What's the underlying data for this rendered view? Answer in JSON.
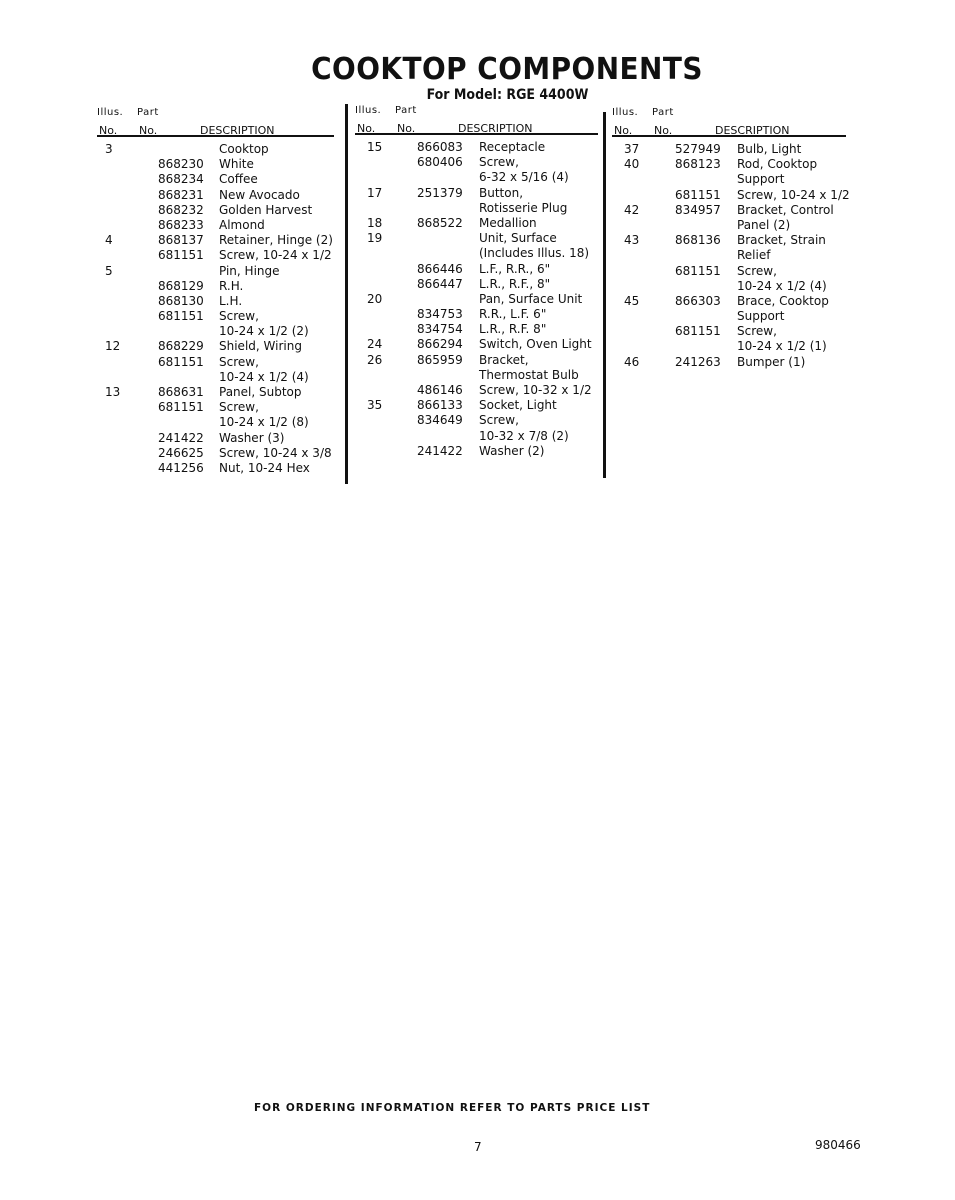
{
  "title": "COOKTOP COMPONENTS",
  "subtitle": "For Model: RGE 4400W",
  "header": {
    "illus": "Illus.",
    "part": "Part",
    "no_illus": "No.",
    "no_part": "No.",
    "description": "DESCRIPTION"
  },
  "columns": [
    {
      "rows": [
        {
          "illus": "3",
          "part": "",
          "desc": "Cooktop"
        },
        {
          "illus": "",
          "part": "868230",
          "desc": "White"
        },
        {
          "illus": "",
          "part": "868234",
          "desc": "Coffee"
        },
        {
          "illus": "",
          "part": "868231",
          "desc": "New Avocado"
        },
        {
          "illus": "",
          "part": "868232",
          "desc": "Golden Harvest"
        },
        {
          "illus": "",
          "part": "868233",
          "desc": "Almond"
        },
        {
          "illus": "4",
          "part": "868137",
          "desc": "Retainer, Hinge (2)"
        },
        {
          "illus": "",
          "part": "681151",
          "desc": "Screw, 10-24 x 1/2"
        },
        {
          "illus": "5",
          "part": "",
          "desc": "Pin, Hinge"
        },
        {
          "illus": "",
          "part": "868129",
          "desc": "R.H."
        },
        {
          "illus": "",
          "part": "868130",
          "desc": "L.H."
        },
        {
          "illus": "",
          "part": "681151",
          "desc": "Screw,"
        },
        {
          "illus": "",
          "part": "",
          "desc": "10-24 x 1/2 (2)"
        },
        {
          "illus": "12",
          "part": "868229",
          "desc": "Shield, Wiring"
        },
        {
          "illus": "",
          "part": "681151",
          "desc": "Screw,"
        },
        {
          "illus": "",
          "part": "",
          "desc": "10-24 x 1/2 (4)"
        },
        {
          "illus": "13",
          "part": "868631",
          "desc": "Panel, Subtop"
        },
        {
          "illus": "",
          "part": "681151",
          "desc": "Screw,"
        },
        {
          "illus": "",
          "part": "",
          "desc": "10-24 x 1/2 (8)"
        },
        {
          "illus": "",
          "part": "241422",
          "desc": "Washer (3)"
        },
        {
          "illus": "",
          "part": "246625",
          "desc": "Screw, 10-24 x 3/8"
        },
        {
          "illus": "",
          "part": "441256",
          "desc": "Nut, 10-24 Hex"
        }
      ]
    },
    {
      "rows": [
        {
          "illus": "15",
          "part": "866083",
          "desc": "Receptacle"
        },
        {
          "illus": "",
          "part": "680406",
          "desc": "Screw,"
        },
        {
          "illus": "",
          "part": "",
          "desc": "6-32 x 5/16 (4)"
        },
        {
          "illus": "17",
          "part": "251379",
          "desc": "Button,"
        },
        {
          "illus": "",
          "part": "",
          "desc": "Rotisserie Plug"
        },
        {
          "illus": "18",
          "part": "868522",
          "desc": "Medallion"
        },
        {
          "illus": "19",
          "part": "",
          "desc": "Unit, Surface"
        },
        {
          "illus": "",
          "part": "",
          "desc": "(Includes Illus. 18)"
        },
        {
          "illus": "",
          "part": "866446",
          "desc": "L.F., R.R., 6\""
        },
        {
          "illus": "",
          "part": "866447",
          "desc": "L.R., R.F., 8\""
        },
        {
          "illus": "20",
          "part": "",
          "desc": "Pan, Surface Unit"
        },
        {
          "illus": "",
          "part": "834753",
          "desc": "R.R., L.F. 6\""
        },
        {
          "illus": "",
          "part": "834754",
          "desc": "L.R., R.F. 8\""
        },
        {
          "illus": "24",
          "part": "866294",
          "desc": "Switch, Oven Light"
        },
        {
          "illus": "26",
          "part": "865959",
          "desc": "Bracket,"
        },
        {
          "illus": "",
          "part": "",
          "desc": "Thermostat Bulb"
        },
        {
          "illus": "",
          "part": "486146",
          "desc": "Screw, 10-32 x 1/2"
        },
        {
          "illus": "35",
          "part": "866133",
          "desc": "Socket, Light"
        },
        {
          "illus": "",
          "part": "834649",
          "desc": "Screw,"
        },
        {
          "illus": "",
          "part": "",
          "desc": "10-32 x 7/8 (2)"
        },
        {
          "illus": "",
          "part": "241422",
          "desc": "Washer (2)"
        }
      ]
    },
    {
      "rows": [
        {
          "illus": "37",
          "part": "527949",
          "desc": "Bulb, Light"
        },
        {
          "illus": "40",
          "part": "868123",
          "desc": "Rod, Cooktop"
        },
        {
          "illus": "",
          "part": "",
          "desc": "Support"
        },
        {
          "illus": "",
          "part": "681151",
          "desc": "Screw, 10-24 x 1/2"
        },
        {
          "illus": "42",
          "part": "834957",
          "desc": "Bracket, Control"
        },
        {
          "illus": "",
          "part": "",
          "desc": "Panel (2)"
        },
        {
          "illus": "43",
          "part": "868136",
          "desc": "Bracket, Strain"
        },
        {
          "illus": "",
          "part": "",
          "desc": "Relief"
        },
        {
          "illus": "",
          "part": "681151",
          "desc": "Screw,"
        },
        {
          "illus": "",
          "part": "",
          "desc": "10-24 x 1/2 (4)"
        },
        {
          "illus": "45",
          "part": "866303",
          "desc": "Brace, Cooktop"
        },
        {
          "illus": "",
          "part": "",
          "desc": "Support"
        },
        {
          "illus": "",
          "part": "681151",
          "desc": "Screw,"
        },
        {
          "illus": "",
          "part": "",
          "desc": "10-24 x 1/2 (1)"
        },
        {
          "illus": "46",
          "part": "241263",
          "desc": "Bumper (1)"
        }
      ]
    }
  ],
  "footer": "FOR ORDERING INFORMATION REFER TO PARTS PRICE LIST",
  "page_number": "7",
  "doc_number": "980466"
}
